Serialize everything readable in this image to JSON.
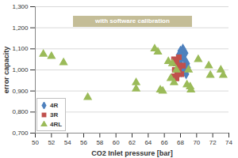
{
  "chart_data": {
    "type": "scatter",
    "x_label": "CO2 Inlet pressure [bar]",
    "y_label": "error capacity",
    "annotation": "with software calibration",
    "xlim": [
      50,
      74
    ],
    "xticks": [
      50,
      52,
      54,
      56,
      58,
      60,
      62,
      64,
      66,
      68,
      70,
      72,
      74
    ],
    "ylim": [
      0.7,
      1.3
    ],
    "yticks": [
      {
        "value": 0.7,
        "label": "0,700"
      },
      {
        "value": 0.8,
        "label": "0,800"
      },
      {
        "value": 0.9,
        "label": "0,900"
      },
      {
        "value": 1.0,
        "label": "1,000"
      },
      {
        "value": 1.1,
        "label": "1,100"
      },
      {
        "value": 1.2,
        "label": "1,200"
      },
      {
        "value": 1.3,
        "label": "1,300"
      }
    ],
    "grid": true,
    "legend": "lower left",
    "series": [
      {
        "name": "4R",
        "color": "#4f81bd",
        "marker": "diamond",
        "x": [
          68.0,
          68.3,
          68.6,
          68.2,
          68.5,
          68.8,
          68.0,
          68.4,
          68.7,
          68.1,
          67.8,
          68.9
        ],
        "values": [
          1.09,
          1.1,
          1.08,
          1.06,
          1.05,
          1.03,
          1.03,
          1.0,
          0.98,
          0.99,
          1.07,
          1.01
        ]
      },
      {
        "name": "3R",
        "color": "#c0504d",
        "marker": "square",
        "x": [
          67.2,
          67.5,
          67.8,
          67.3,
          67.6,
          67.9,
          67.2,
          67.5,
          68.1,
          67.8,
          67.4,
          68.3
        ],
        "values": [
          1.05,
          1.04,
          1.06,
          1.0,
          0.98,
          1.02,
          0.97,
          0.96,
          0.98,
          0.995,
          1.03,
          1.02
        ]
      },
      {
        "name": "4RL",
        "color": "#9bbb59",
        "marker": "triangle",
        "x": [
          51.0,
          52.0,
          53.5,
          56.5,
          62.5,
          62.5,
          64.8,
          65.2,
          65.5,
          65.8,
          66.5,
          67.0,
          67.5,
          68.8,
          69.2,
          69.3,
          69.0,
          70.2,
          71.5,
          71.7,
          73.0,
          73.3,
          67.2,
          66.8
        ],
        "values": [
          1.075,
          1.065,
          1.035,
          0.87,
          0.94,
          0.91,
          1.1,
          1.085,
          0.905,
          0.9,
          1.04,
          1.03,
          1.0,
          0.93,
          0.92,
          0.905,
          1.0,
          1.05,
          1.02,
          0.975,
          1.0,
          0.975,
          0.94,
          0.96
        ]
      }
    ]
  }
}
